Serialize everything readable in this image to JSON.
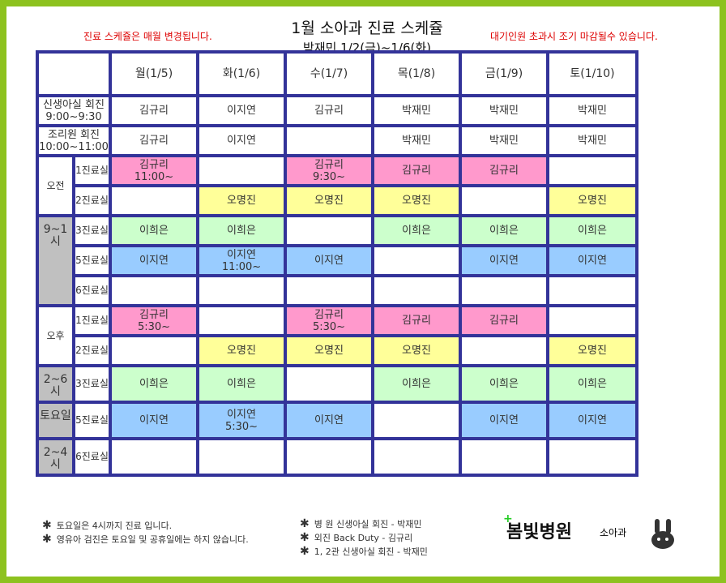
{
  "header": {
    "title": "1월 소아과 진료 스케쥴",
    "subtitle": "박재민 1/2(금)~1/6(화)",
    "note_left": "진료 스케쥴은 매월 변경됩니다.",
    "note_right": "대기인원 초과시 조기 마감될수 있습니다."
  },
  "colors": {
    "pink": "#ff99cc",
    "yellow": "#ffff99",
    "green": "#ccffcc",
    "blue": "#99ccff",
    "border": "#333399",
    "frame": "#8dc21f"
  },
  "days": [
    "월(1/5)",
    "화(1/6)",
    "수(1/7)",
    "목(1/8)",
    "금(1/9)",
    "토(1/10)"
  ],
  "rounds": [
    {
      "label": "신생아실 회진",
      "time": "9:00~9:30",
      "cells": [
        "김규리",
        "이지연",
        "김규리",
        "박재민",
        "박재민",
        "박재민"
      ]
    },
    {
      "label": "조리원 회진",
      "time": "10:00~11:00",
      "cells": [
        "김규리",
        "이지연",
        "",
        "박재민",
        "박재민",
        "박재민"
      ]
    }
  ],
  "sessions": [
    {
      "label": "오전",
      "time": [
        "9~1시"
      ],
      "rooms": [
        {
          "room": "1진료실",
          "color": "pink",
          "cells": [
            "김규리\n11:00~",
            "",
            "김규리\n9:30~",
            "김규리",
            "김규리",
            ""
          ]
        },
        {
          "room": "2진료실",
          "color": "yellow",
          "cells": [
            "",
            "오명진",
            "오명진",
            "오명진",
            "",
            "오명진"
          ]
        },
        {
          "room": "3진료실",
          "color": "green",
          "cells": [
            "이희은",
            "이희은",
            "",
            "이희은",
            "이희은",
            "이희은"
          ]
        },
        {
          "room": "5진료실",
          "color": "blue",
          "cells": [
            "이지연",
            "이지연\n11:00~",
            "이지연",
            "",
            "이지연",
            "이지연"
          ]
        },
        {
          "room": "6진료실",
          "color": "",
          "cells": [
            "",
            "",
            "",
            "",
            "",
            ""
          ]
        }
      ]
    },
    {
      "label": "오후",
      "time": [
        "2~6시",
        "토요일",
        "2~4시"
      ],
      "rooms": [
        {
          "room": "1진료실",
          "color": "pink",
          "cells": [
            "김규리\n5:30~",
            "",
            "김규리\n5:30~",
            "김규리",
            "김규리",
            ""
          ]
        },
        {
          "room": "2진료실",
          "color": "yellow",
          "cells": [
            "",
            "오명진",
            "오명진",
            "오명진",
            "",
            "오명진"
          ]
        },
        {
          "room": "3진료실",
          "color": "green",
          "cells": [
            "이희은",
            "이희은",
            "",
            "이희은",
            "이희은",
            "이희은"
          ]
        },
        {
          "room": "5진료실",
          "color": "blue",
          "cells": [
            "이지연",
            "이지연\n5:30~",
            "이지연",
            "",
            "이지연",
            "이지연"
          ]
        },
        {
          "room": "6진료실",
          "color": "",
          "cells": [
            "",
            "",
            "",
            "",
            "",
            ""
          ]
        }
      ]
    }
  ],
  "footer": {
    "left": [
      "토요일은 4시까지 진료 입니다.",
      "영유아 검진은 토요일 및 공휴일에는 하지 않습니다."
    ],
    "right": [
      "병   원 신생아실 회진 - 박재민",
      "외진 Back Duty - 김규리",
      "1, 2관 신생아실 회진 - 박재민"
    ],
    "logo": "봄빛병원",
    "dept": "소아과",
    "star": "✱"
  }
}
